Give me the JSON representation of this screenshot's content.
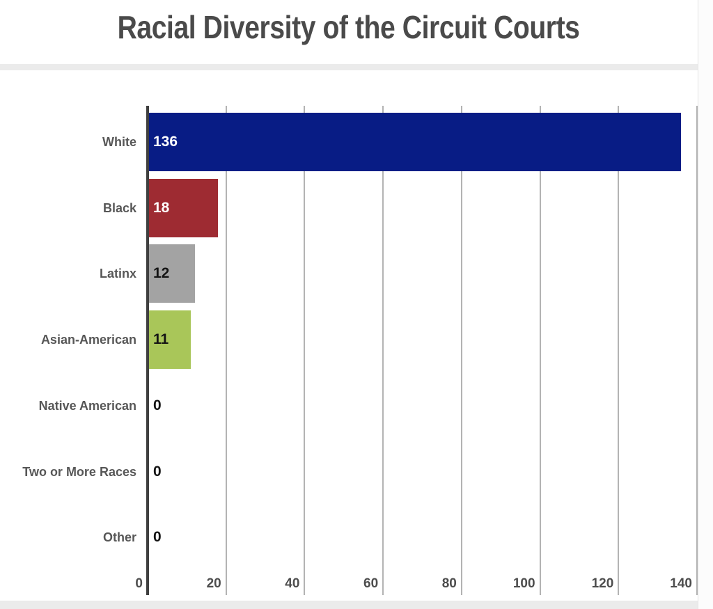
{
  "title": "Racial Diversity of the Circuit Courts",
  "chart_data": {
    "type": "bar",
    "orientation": "horizontal",
    "title": "Racial Diversity of the Circuit Courts",
    "categories": [
      "White",
      "Black",
      "Latinx",
      "Asian-American",
      "Native American",
      "Two or More Races",
      "Other"
    ],
    "values": [
      136,
      18,
      12,
      11,
      0,
      0,
      0
    ],
    "bar_colors": [
      "#081c85",
      "#9e2b32",
      "#a3a3a3",
      "#a9c659",
      null,
      null,
      null
    ],
    "value_label_colors": [
      "#ffffff",
      "#ffffff",
      "#141414",
      "#141414",
      "#141414",
      "#141414",
      "#141414"
    ],
    "xticks": [
      0,
      20,
      40,
      60,
      80,
      100,
      120,
      140
    ],
    "xlim": [
      0,
      140
    ],
    "xlabel": "",
    "ylabel": "",
    "grid": true,
    "legend": false
  },
  "colors": {
    "axis": "#3f3f3f",
    "gridline": "#b3b3b3",
    "title_text": "#4a4a4a",
    "category_text": "#575757",
    "tick_text": "#4d4d4d",
    "divider_strip": "#ebebeb",
    "bar_blue": "#081c85",
    "bar_red": "#9e2b32",
    "bar_gray": "#a3a3a3",
    "bar_green": "#a9c659"
  }
}
